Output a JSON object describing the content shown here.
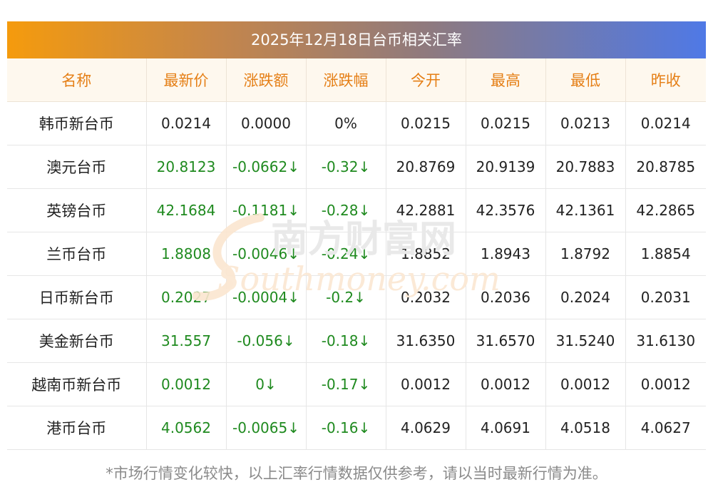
{
  "title": "2025年12月18日台币相关汇率",
  "colors": {
    "accent_orange": "#e57f16",
    "down_green": "#1f8a1f"
  },
  "table": {
    "headers": [
      "名称",
      "最新价",
      "涨跌额",
      "涨跌幅",
      "今开",
      "最高",
      "最低",
      "昨收"
    ],
    "rows": [
      {
        "name": "韩币新台币",
        "latest": "0.0214",
        "change": "0.0000",
        "change_pct": "0%",
        "open": "0.0215",
        "high": "0.0215",
        "low": "0.0213",
        "prev_close": "0.0214"
      },
      {
        "name": "澳元台币",
        "latest": "20.8123",
        "change": "-0.0662↓",
        "change_pct": "-0.32↓",
        "open": "20.8769",
        "high": "20.9139",
        "low": "20.7883",
        "prev_close": "20.8785"
      },
      {
        "name": "英镑台币",
        "latest": "42.1684",
        "change": "-0.1181↓",
        "change_pct": "-0.28↓",
        "open": "42.2881",
        "high": "42.3576",
        "low": "42.1361",
        "prev_close": "42.2865"
      },
      {
        "name": "兰币台币",
        "latest": "1.8808",
        "change": "-0.0046↓",
        "change_pct": "-0.24↓",
        "open": "1.8852",
        "high": "1.8943",
        "low": "1.8792",
        "prev_close": "1.8854"
      },
      {
        "name": "日币新台币",
        "latest": "0.2027",
        "change": "-0.0004↓",
        "change_pct": "-0.2↓",
        "open": "0.2032",
        "high": "0.2036",
        "low": "0.2024",
        "prev_close": "0.2031"
      },
      {
        "name": "美金新台币",
        "latest": "31.557",
        "change": "-0.056↓",
        "change_pct": "-0.18↓",
        "open": "31.6350",
        "high": "31.6570",
        "low": "31.5240",
        "prev_close": "31.6130"
      },
      {
        "name": "越南币新台币",
        "latest": "0.0012",
        "change": "0↓",
        "change_pct": "-0.17↓",
        "open": "0.0012",
        "high": "0.0012",
        "low": "0.0012",
        "prev_close": "0.0012"
      },
      {
        "name": "港币台币",
        "latest": "4.0562",
        "change": "-0.0065↓",
        "change_pct": "-0.16↓",
        "open": "4.0629",
        "high": "4.0691",
        "low": "4.0518",
        "prev_close": "4.0627"
      }
    ]
  },
  "watermark": {
    "cn": "南方财富网",
    "en": "Southmoney.com"
  },
  "footnote": "*市场行情变化较快，以上汇率行情数据仅供参考，请以当时最新行情为准。"
}
